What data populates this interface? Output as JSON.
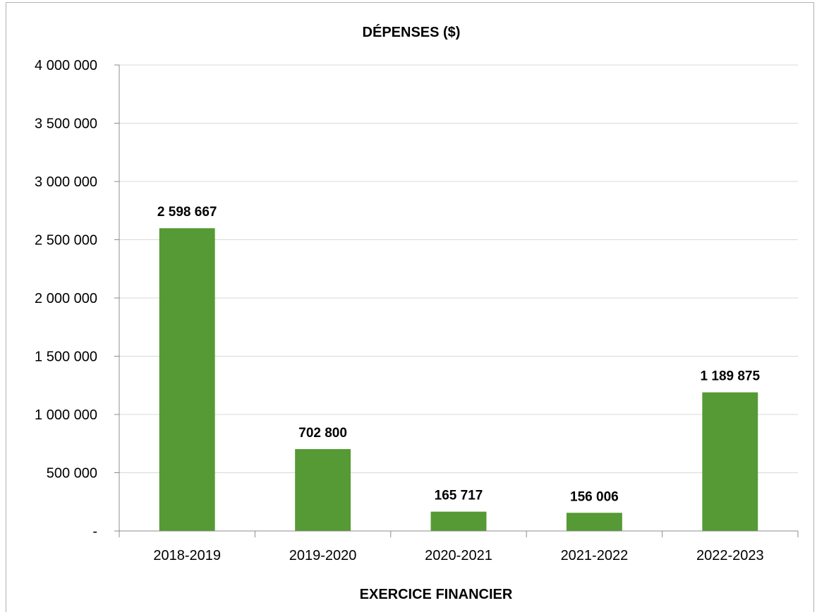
{
  "chart_data": {
    "type": "bar",
    "title": "DÉPENSES ($)",
    "xlabel": "EXERCICE FINANCIER",
    "ylabel": "",
    "categories": [
      "2018-2019",
      "2019-2020",
      "2020-2021",
      "2021-2022",
      "2022-2023"
    ],
    "values": [
      2598667,
      702800,
      165717,
      156006,
      1189875
    ],
    "data_labels": [
      "2 598 667",
      "702 800",
      "165 717",
      "156 006",
      "1 189 875"
    ],
    "ylim": [
      0,
      4000000
    ],
    "y_ticks": [
      0,
      500000,
      1000000,
      1500000,
      2000000,
      2500000,
      3000000,
      3500000,
      4000000
    ],
    "y_tick_labels": [
      "-",
      "500 000",
      "1 000 000",
      "1 500 000",
      "2 000 000",
      "2 500 000",
      "3 000 000",
      "3 500 000",
      "4 000 000"
    ],
    "grid": true,
    "legend": "none",
    "bar_color": "#559a34",
    "grid_color": "#d9d9d9",
    "axis_color": "#8c8c8c"
  }
}
